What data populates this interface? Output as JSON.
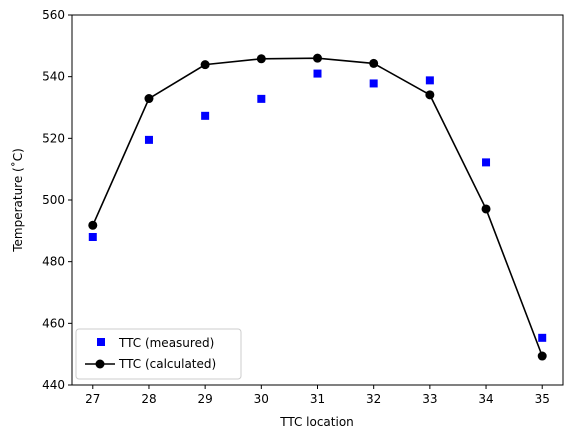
{
  "chart_data": {
    "type": "line",
    "title": "",
    "xlabel": "TTC location",
    "ylabel": "Temperature (˚C)",
    "xlim": [
      26.63,
      35.37
    ],
    "ylim": [
      440,
      560
    ],
    "xticks": [
      27,
      28,
      29,
      30,
      31,
      32,
      33,
      34,
      35
    ],
    "yticks": [
      440,
      460,
      480,
      500,
      520,
      540,
      560
    ],
    "grid": false,
    "legend_position": "lower-left",
    "series": [
      {
        "name": "TTC (measured)",
        "style": "markers",
        "marker": "square",
        "color": "#0000ff",
        "x": [
          27,
          28,
          29,
          30,
          31,
          32,
          33,
          34,
          35
        ],
        "y": [
          488,
          519.5,
          527.3,
          532.8,
          541,
          537.8,
          538.8,
          512.2,
          455.3
        ]
      },
      {
        "name": "TTC (calculated)",
        "style": "line-markers",
        "marker": "circle",
        "color": "#000000",
        "x": [
          27,
          28,
          29,
          30,
          31,
          32,
          33,
          34,
          35
        ],
        "y": [
          491.8,
          532.9,
          543.9,
          545.8,
          546,
          544.3,
          534.1,
          497.1,
          449.4
        ]
      }
    ]
  }
}
